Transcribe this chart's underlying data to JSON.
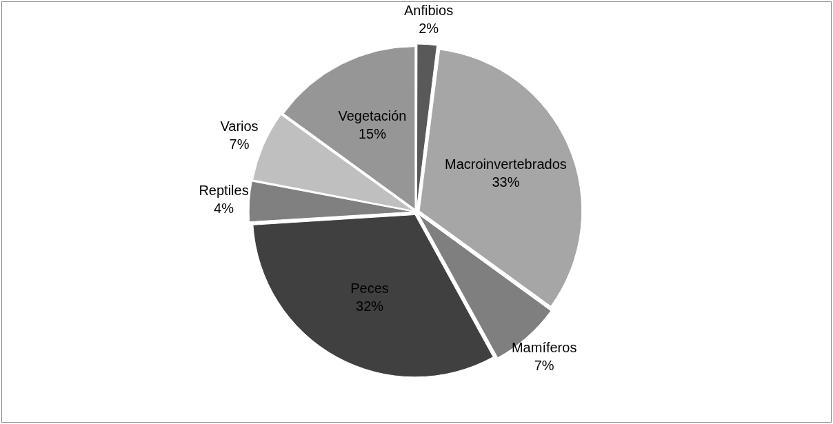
{
  "chart_data": {
    "type": "pie",
    "categories": [
      "Anfibios",
      "Macroinvertebrados",
      "Mamíferos",
      "Peces",
      "Reptiles",
      "Varios",
      "Vegetación"
    ],
    "values": [
      2,
      33,
      7,
      32,
      4,
      7,
      15
    ],
    "value_labels": [
      "2%",
      "33%",
      "7%",
      "32%",
      "4%",
      "7%",
      "15%"
    ],
    "colors": [
      "#595959",
      "#a6a6a6",
      "#7f7f7f",
      "#404040",
      "#808080",
      "#bfbfbf",
      "#969696"
    ],
    "legend": false
  }
}
